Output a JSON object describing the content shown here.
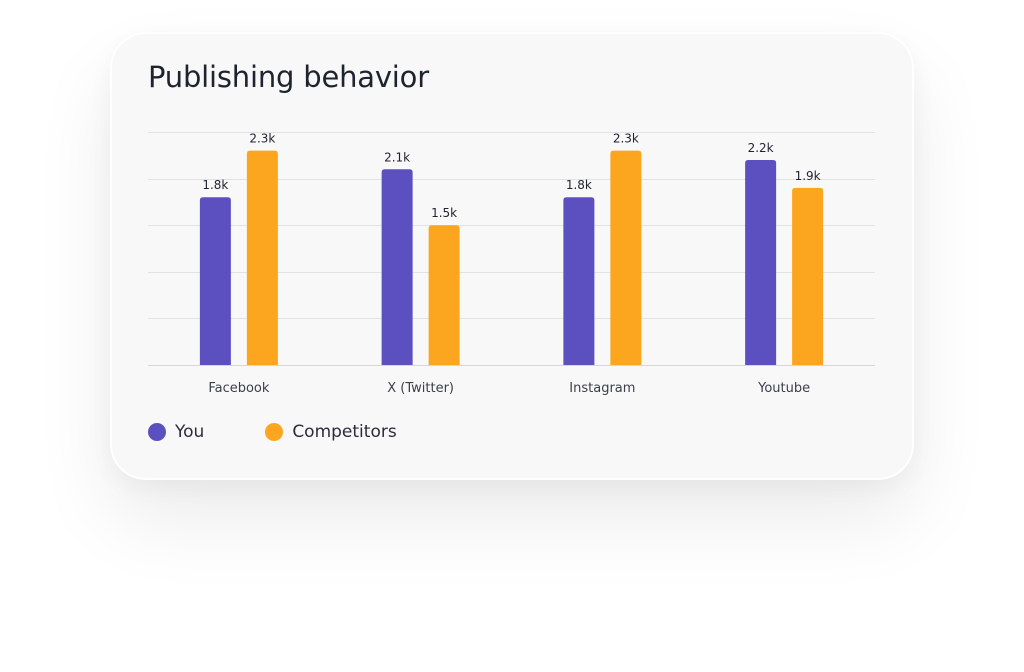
{
  "chart_data": {
    "type": "bar",
    "title": "Publishing behavior",
    "categories": [
      "Facebook",
      "X (Twitter)",
      "Instagram",
      "Youtube"
    ],
    "series": [
      {
        "name": "You",
        "values": [
          1.8,
          2.1,
          1.8,
          2.2
        ],
        "labels": [
          "1.8k",
          "2.1k",
          "1.8k",
          "2.2k"
        ],
        "color": "#5c4fc0"
      },
      {
        "name": "Competitors",
        "values": [
          2.3,
          1.5,
          2.3,
          1.9
        ],
        "labels": [
          "2.3k",
          "1.5k",
          "2.3k",
          "1.9k"
        ],
        "color": "#fca61f"
      }
    ],
    "ylim": [
      0,
      2.5
    ],
    "grid": true,
    "legend_position": "bottom-left"
  }
}
